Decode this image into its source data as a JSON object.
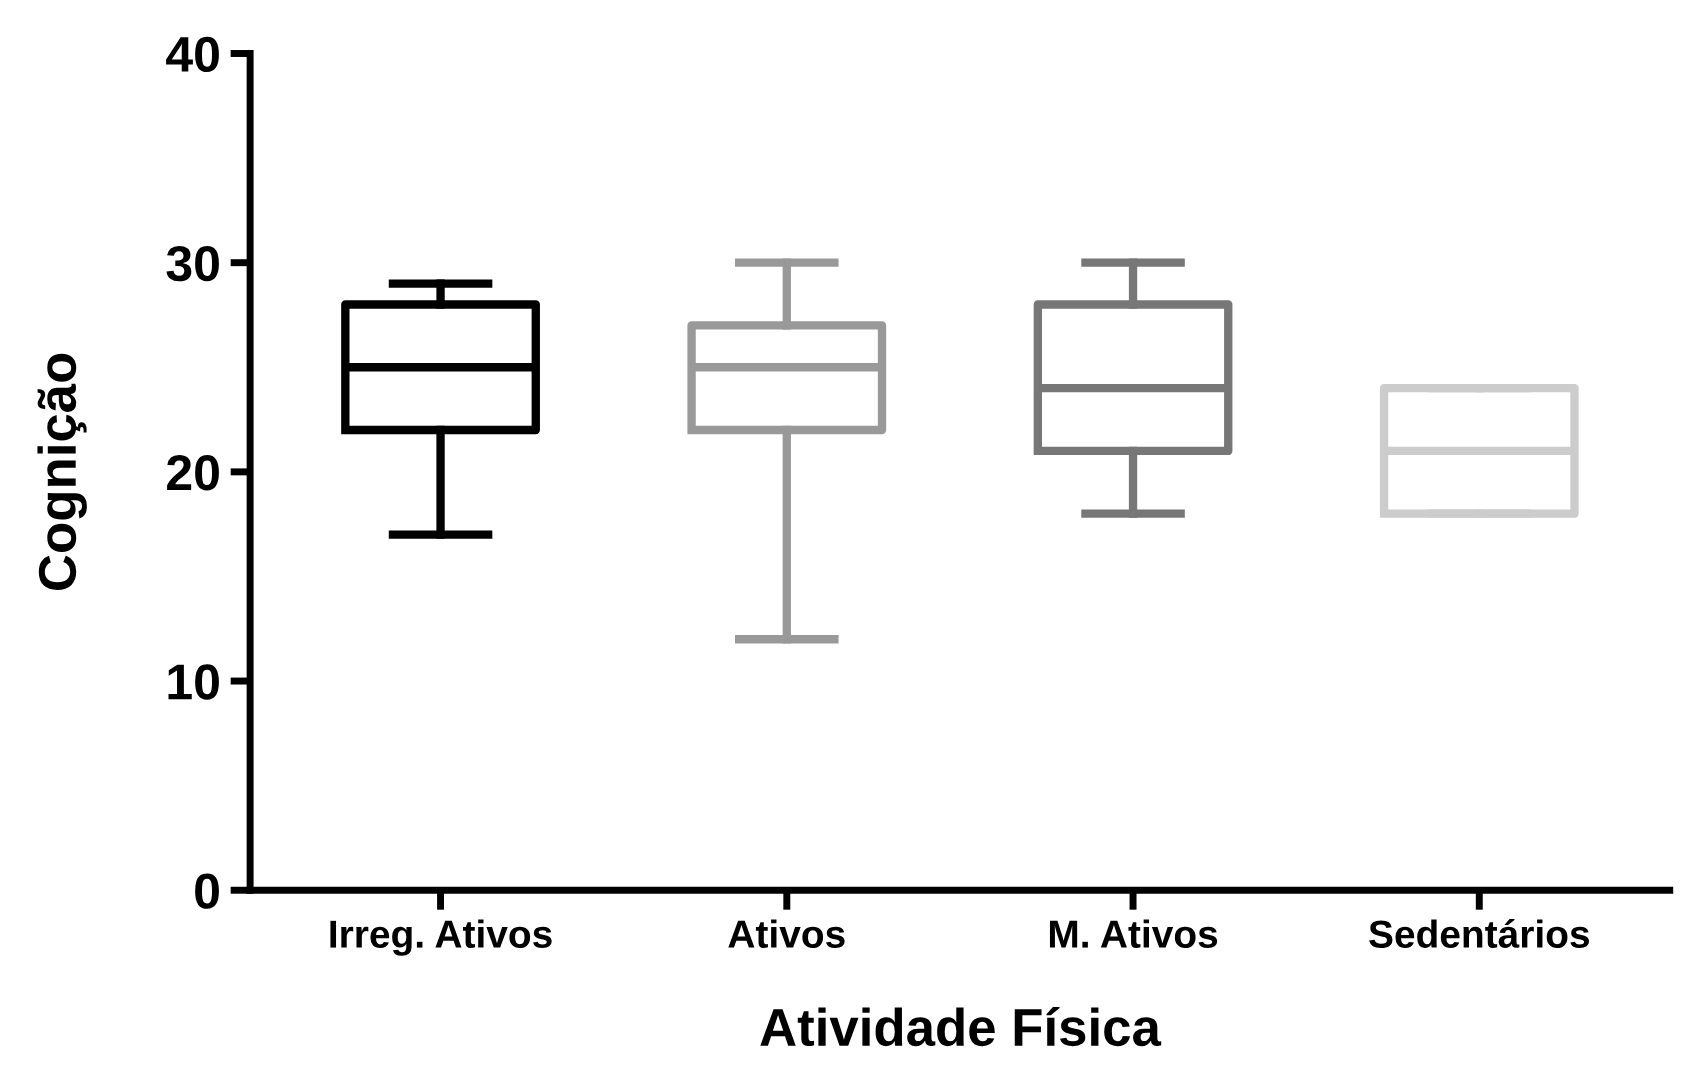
{
  "chart_data": {
    "type": "box",
    "xlabel": "Atividade Física",
    "ylabel": "Cognição",
    "categories": [
      "Irreg. Ativos",
      "Ativos",
      "M. Ativos",
      "Sedentários"
    ],
    "colors": [
      "#000000",
      "#999999",
      "#777777",
      "#cccccc"
    ],
    "boxes": [
      {
        "low": 17,
        "q1": 22,
        "median": 25,
        "q3": 28,
        "high": 29
      },
      {
        "low": 12,
        "q1": 22,
        "median": 25,
        "q3": 27,
        "high": 30
      },
      {
        "low": 18,
        "q1": 21,
        "median": 24,
        "q3": 28,
        "high": 30
      },
      {
        "low": 18,
        "q1": 18,
        "median": 21,
        "q3": 24,
        "high": 24
      }
    ],
    "ylim": [
      0,
      40
    ],
    "yticks": [
      0,
      10,
      20,
      30,
      40
    ],
    "grid": false
  }
}
